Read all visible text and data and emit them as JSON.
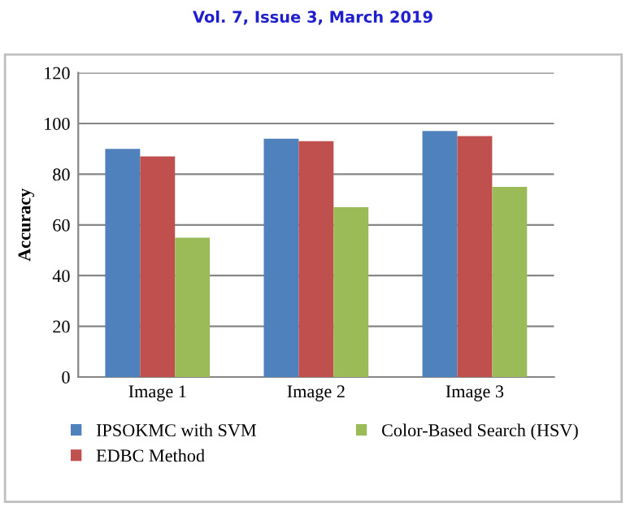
{
  "chart_data": {
    "type": "bar",
    "ylabel": "Accuracy",
    "annotations": [
      "Vol. 7, Issue 3, March 2019"
    ],
    "categories": [
      "Image 1",
      "Image 2",
      "Image 3"
    ],
    "series": [
      {
        "name": "IPSOKMC with SVM",
        "color": "#4f81bd",
        "values": [
          90,
          94,
          97
        ]
      },
      {
        "name": "EDBC Method",
        "color": "#c0504d",
        "values": [
          87,
          93,
          95
        ]
      },
      {
        "name": "Color-Based Search (HSV)",
        "color": "#9bbb59",
        "values": [
          55,
          67,
          75
        ]
      }
    ],
    "ylim": [
      0,
      120
    ],
    "yticks": [
      0,
      20,
      40,
      60,
      80,
      100,
      120
    ],
    "grid": "y",
    "legend": "bottom"
  }
}
